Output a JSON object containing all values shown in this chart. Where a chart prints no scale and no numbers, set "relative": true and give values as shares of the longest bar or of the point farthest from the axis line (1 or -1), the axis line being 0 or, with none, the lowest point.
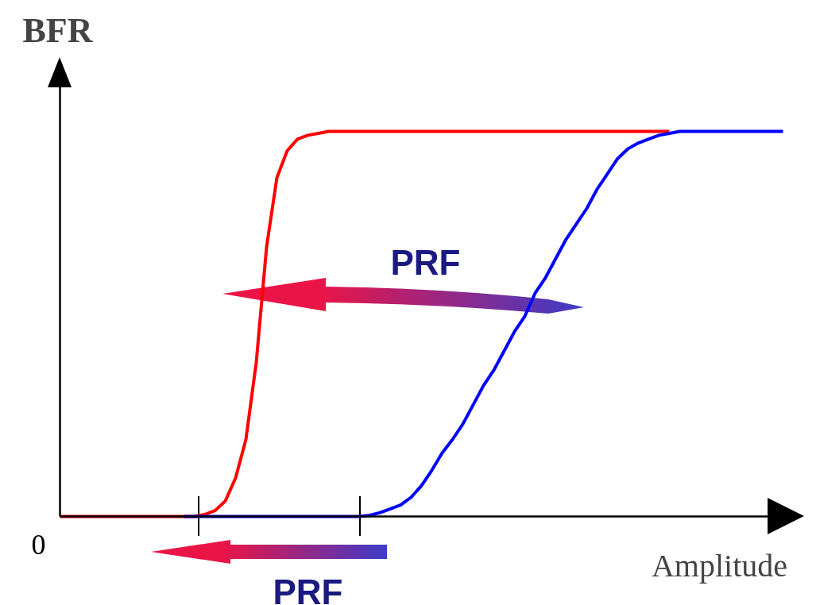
{
  "chart_data": {
    "type": "line",
    "relative": true,
    "xlabel": "Amplitude",
    "ylabel": "BFR",
    "annotations": [
      "PRF",
      "PRF",
      "0"
    ],
    "categories": [
      null,
      null,
      null,
      null,
      null,
      null,
      null,
      null,
      null,
      null,
      null,
      null,
      null,
      null,
      null,
      null,
      null,
      null,
      null,
      null,
      null,
      null,
      null,
      null,
      null,
      null,
      null,
      null,
      null,
      null,
      null,
      null,
      null,
      null,
      null,
      null,
      null,
      null,
      null,
      null,
      null,
      null,
      null,
      null,
      null,
      null,
      null,
      null,
      null,
      null,
      null,
      null,
      null,
      null,
      null,
      null,
      null,
      null,
      null,
      null,
      null,
      null,
      null,
      null,
      null,
      null,
      null,
      null,
      null,
      null,
      null
    ],
    "series": [
      {
        "color": "#ff0000",
        "values": [
          0,
          0,
          0,
          0,
          0,
          0,
          0,
          0,
          0,
          0,
          0,
          0,
          0,
          0,
          0.005,
          0.015,
          0.04,
          0.1,
          0.2,
          0.4,
          0.7,
          0.88,
          0.95,
          0.98,
          0.99,
          0.995,
          1,
          1,
          1,
          1,
          1,
          1,
          1,
          1,
          1,
          1,
          1,
          1,
          1,
          1,
          1,
          1,
          1,
          1,
          1,
          1,
          1,
          1,
          1,
          1,
          1,
          1,
          1,
          1,
          1,
          1,
          1,
          1,
          1,
          1,
          null,
          null,
          null,
          null,
          null,
          null,
          null,
          null,
          null,
          null,
          null
        ]
      },
      {
        "color": "#0000ff",
        "values": [
          null,
          null,
          null,
          null,
          null,
          null,
          null,
          null,
          null,
          null,
          null,
          null,
          0,
          0,
          0,
          0,
          0,
          0,
          0,
          0,
          0,
          0,
          0,
          0,
          0,
          0,
          0,
          0,
          0,
          0,
          0.003,
          0.01,
          0.02,
          0.03,
          0.05,
          0.08,
          0.12,
          0.165,
          0.2,
          0.24,
          0.29,
          0.34,
          0.38,
          0.43,
          0.48,
          0.52,
          0.58,
          0.62,
          0.67,
          0.72,
          0.76,
          0.8,
          0.85,
          0.89,
          0.93,
          0.955,
          0.97,
          0.98,
          0.99,
          0.995,
          1,
          1,
          1,
          1,
          1,
          1,
          1,
          1,
          1,
          1,
          1
        ]
      }
    ]
  }
}
